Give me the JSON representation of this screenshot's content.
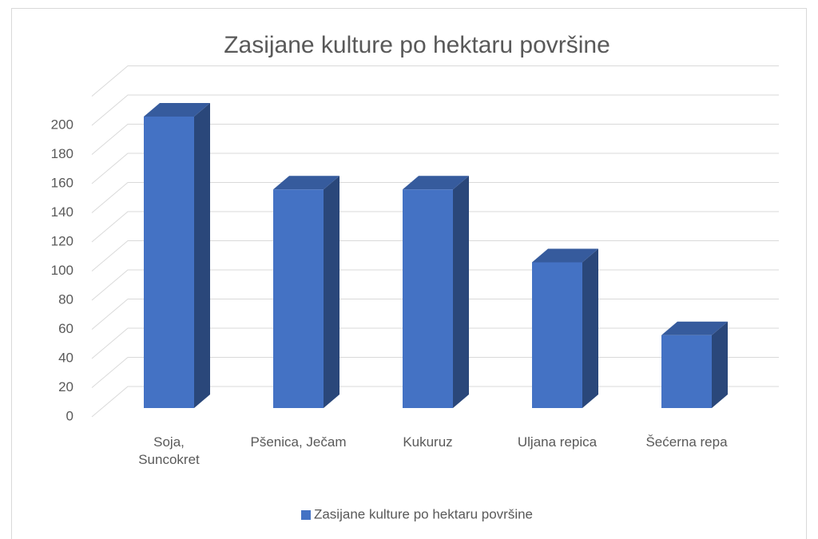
{
  "chart_data": {
    "type": "bar3d",
    "title": "Zasijane kulture po hektaru površine",
    "categories": [
      "Soja, Suncokret",
      "Pšenica, Ječam",
      "Kukuruz",
      "Uljana repica",
      "Šećerna repa"
    ],
    "series": [
      {
        "name": "Zasijane kulture po hektaru površine",
        "color": "#4472c4",
        "values": [
          200,
          150,
          150,
          100,
          50
        ]
      }
    ],
    "ylim": [
      0,
      220
    ],
    "yticks": [
      0,
      20,
      40,
      60,
      80,
      100,
      120,
      140,
      160,
      180,
      200
    ],
    "grid": true,
    "legend": "bottom"
  }
}
